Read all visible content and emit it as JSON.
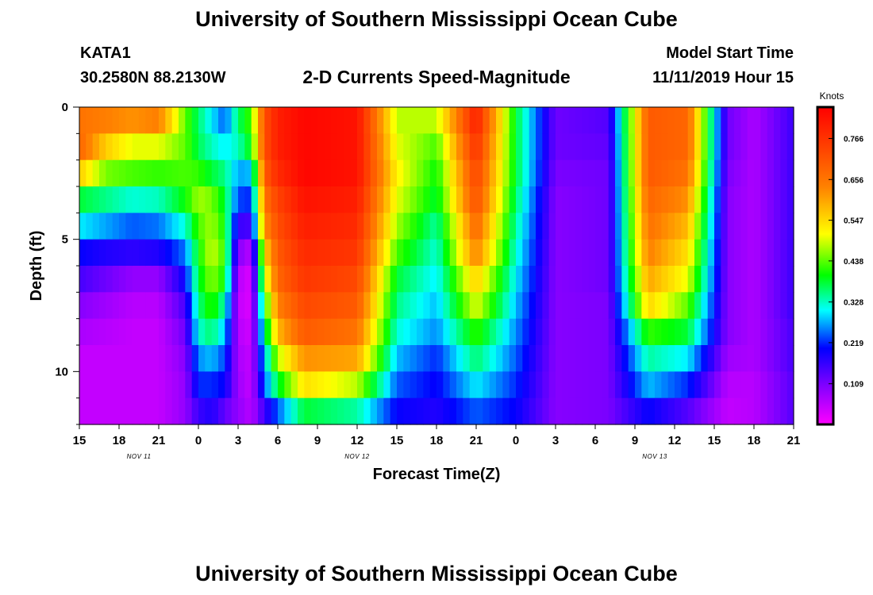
{
  "header": {
    "title": "University of Southern Mississippi Ocean Cube",
    "station_id": "KATA1",
    "station_coords": "30.2580N 88.2130W",
    "product": "2-D Currents Speed-Magnitude",
    "model_start_label": "Model Start Time",
    "model_start_value": "11/11/2019 Hour 15"
  },
  "footer": {
    "title": "University of Southern Mississippi Ocean Cube"
  },
  "chart_data": {
    "type": "heatmap",
    "title": "2-D Currents Speed-Magnitude",
    "xlabel": "Forecast Time(Z)",
    "ylabel": "Depth (ft)",
    "x_hours": [
      0,
      3,
      6,
      9,
      12,
      15,
      18,
      21,
      24,
      27,
      30,
      33,
      36,
      39,
      42,
      45,
      48,
      51,
      54
    ],
    "x_tick_labels": [
      "15",
      "18",
      "21",
      "0",
      "3",
      "6",
      "9",
      "12",
      "15",
      "18",
      "21",
      "0",
      "3",
      "6",
      "9",
      "12",
      "15",
      "18",
      "21"
    ],
    "x_range_hours": [
      0,
      54
    ],
    "date_labels": [
      {
        "text": "NOV 11",
        "hour": 4.5
      },
      {
        "text": "NOV 12",
        "hour": 21
      },
      {
        "text": "NOV 13",
        "hour": 43.5
      }
    ],
    "y_ticks": [
      0,
      5,
      10
    ],
    "y_range_ft": [
      0,
      12
    ],
    "colorbar": {
      "label": "Knots",
      "ticks": [
        "0.109",
        "0.219",
        "0.328",
        "0.438",
        "0.547",
        "0.656",
        "0.766"
      ],
      "tick_values": [
        0.109,
        0.219,
        0.328,
        0.438,
        0.547,
        0.656,
        0.766
      ],
      "range": [
        0.0,
        0.85
      ]
    },
    "depth_levels_ft": [
      0.5,
      1.5,
      2.5,
      3.5,
      4.5,
      5.5,
      6.5,
      7.5,
      8.5,
      9.5,
      10.5,
      11.5
    ],
    "depth_profiles_hours": [
      0,
      2,
      4,
      6,
      8,
      9,
      10,
      11,
      12,
      13,
      14,
      15,
      17,
      21,
      24,
      27,
      30,
      33,
      36,
      40,
      43,
      46,
      49,
      51,
      54
    ],
    "depth_profiles": [
      [
        0.66,
        0.68,
        0.56,
        0.38,
        0.3,
        0.2,
        0.15,
        0.1,
        0.07,
        0.05,
        0.05,
        0.05
      ],
      [
        0.64,
        0.56,
        0.45,
        0.35,
        0.27,
        0.18,
        0.12,
        0.08,
        0.06,
        0.05,
        0.05,
        0.05
      ],
      [
        0.62,
        0.5,
        0.43,
        0.32,
        0.24,
        0.17,
        0.09,
        0.06,
        0.05,
        0.05,
        0.05,
        0.05
      ],
      [
        0.64,
        0.5,
        0.42,
        0.33,
        0.25,
        0.18,
        0.09,
        0.06,
        0.05,
        0.05,
        0.05,
        0.05
      ],
      [
        0.44,
        0.44,
        0.43,
        0.4,
        0.32,
        0.25,
        0.2,
        0.15,
        0.12,
        0.1,
        0.09,
        0.09
      ],
      [
        0.36,
        0.37,
        0.42,
        0.47,
        0.43,
        0.4,
        0.38,
        0.35,
        0.32,
        0.26,
        0.22,
        0.16
      ],
      [
        0.3,
        0.33,
        0.38,
        0.45,
        0.47,
        0.49,
        0.46,
        0.42,
        0.36,
        0.28,
        0.22,
        0.18
      ],
      [
        0.24,
        0.3,
        0.35,
        0.38,
        0.4,
        0.42,
        0.4,
        0.33,
        0.28,
        0.23,
        0.2,
        0.13
      ],
      [
        0.36,
        0.33,
        0.27,
        0.23,
        0.16,
        0.1,
        0.06,
        0.05,
        0.06,
        0.07,
        0.08,
        0.09
      ],
      [
        0.43,
        0.4,
        0.28,
        0.22,
        0.15,
        0.06,
        0.03,
        0.03,
        0.04,
        0.05,
        0.05,
        0.06
      ],
      [
        0.72,
        0.72,
        0.7,
        0.66,
        0.62,
        0.55,
        0.48,
        0.4,
        0.34,
        0.28,
        0.24,
        0.16
      ],
      [
        0.8,
        0.8,
        0.78,
        0.74,
        0.72,
        0.7,
        0.68,
        0.64,
        0.58,
        0.48,
        0.38,
        0.24
      ],
      [
        0.84,
        0.84,
        0.84,
        0.82,
        0.8,
        0.78,
        0.76,
        0.73,
        0.7,
        0.62,
        0.54,
        0.38
      ],
      [
        0.82,
        0.82,
        0.82,
        0.8,
        0.78,
        0.76,
        0.73,
        0.7,
        0.66,
        0.6,
        0.48,
        0.34
      ],
      [
        0.48,
        0.5,
        0.52,
        0.5,
        0.47,
        0.43,
        0.38,
        0.35,
        0.32,
        0.28,
        0.24,
        0.2
      ],
      [
        0.48,
        0.43,
        0.4,
        0.38,
        0.34,
        0.32,
        0.3,
        0.28,
        0.26,
        0.22,
        0.2,
        0.18
      ],
      [
        0.8,
        0.77,
        0.74,
        0.72,
        0.68,
        0.64,
        0.56,
        0.5,
        0.42,
        0.36,
        0.3,
        0.24
      ],
      [
        0.38,
        0.38,
        0.38,
        0.36,
        0.34,
        0.32,
        0.3,
        0.28,
        0.26,
        0.24,
        0.22,
        0.2
      ],
      [
        0.12,
        0.12,
        0.11,
        0.1,
        0.1,
        0.1,
        0.1,
        0.1,
        0.1,
        0.1,
        0.1,
        0.1
      ],
      [
        0.14,
        0.13,
        0.12,
        0.12,
        0.12,
        0.12,
        0.12,
        0.11,
        0.11,
        0.11,
        0.11,
        0.11
      ],
      [
        0.7,
        0.7,
        0.7,
        0.68,
        0.66,
        0.64,
        0.6,
        0.55,
        0.42,
        0.34,
        0.28,
        0.2
      ],
      [
        0.68,
        0.68,
        0.66,
        0.62,
        0.58,
        0.54,
        0.5,
        0.44,
        0.38,
        0.3,
        0.22,
        0.14
      ],
      [
        0.12,
        0.12,
        0.11,
        0.1,
        0.1,
        0.1,
        0.1,
        0.1,
        0.1,
        0.08,
        0.06,
        0.05
      ],
      [
        0.07,
        0.07,
        0.07,
        0.07,
        0.07,
        0.07,
        0.07,
        0.07,
        0.07,
        0.07,
        0.06,
        0.06
      ],
      [
        0.16,
        0.16,
        0.16,
        0.16,
        0.16,
        0.16,
        0.16,
        0.16,
        0.15,
        0.15,
        0.14,
        0.14
      ]
    ]
  }
}
